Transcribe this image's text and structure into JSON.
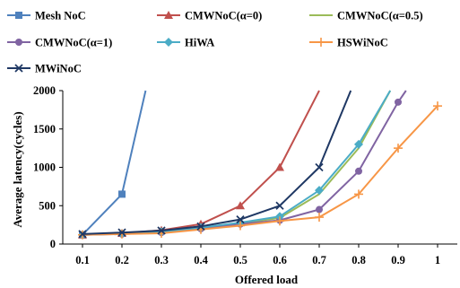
{
  "chart_data": {
    "type": "line",
    "title": "",
    "xlabel": "Offered load",
    "ylabel": "Average latency(cycles)",
    "x": [
      0.1,
      0.2,
      0.3,
      0.4,
      0.5,
      0.6,
      0.7,
      0.8,
      0.9,
      1
    ],
    "x_tick_labels": [
      "0.1",
      "0.2",
      "0.3",
      "0.4",
      "0.5",
      "0.6",
      "0.7",
      "0.8",
      "0.9",
      "1"
    ],
    "y_ticks": [
      0,
      500,
      1000,
      1500,
      2000
    ],
    "y_tick_labels": [
      "0",
      "500",
      "1000",
      "1500",
      "2000"
    ],
    "xlim": [
      0.05,
      1.05
    ],
    "ylim": [
      0,
      2000
    ],
    "grid": false,
    "legend_position": "top",
    "series": [
      {
        "name": "Mesh NoC",
        "color": "#4f81bd",
        "marker": "square",
        "points": [
          [
            0.1,
            120
          ],
          [
            0.2,
            650
          ],
          [
            0.26,
            2000
          ]
        ]
      },
      {
        "name": "CMWNoC(α=0)",
        "color": "#c0504d",
        "marker": "triangle",
        "points": [
          [
            0.1,
            120
          ],
          [
            0.2,
            140
          ],
          [
            0.3,
            180
          ],
          [
            0.4,
            260
          ],
          [
            0.5,
            500
          ],
          [
            0.6,
            1000
          ],
          [
            0.7,
            2000
          ]
        ]
      },
      {
        "name": "CMWNoC(α=0.5)",
        "color": "#9bbb59",
        "marker": "none",
        "points": [
          [
            0.1,
            120
          ],
          [
            0.2,
            135
          ],
          [
            0.3,
            155
          ],
          [
            0.4,
            210
          ],
          [
            0.5,
            270
          ],
          [
            0.6,
            340
          ],
          [
            0.7,
            650
          ],
          [
            0.8,
            1250
          ],
          [
            0.88,
            2000
          ]
        ]
      },
      {
        "name": "CMWNoC(α=1)",
        "color": "#8064a2",
        "marker": "circle",
        "points": [
          [
            0.1,
            120
          ],
          [
            0.2,
            130
          ],
          [
            0.3,
            150
          ],
          [
            0.4,
            200
          ],
          [
            0.5,
            260
          ],
          [
            0.6,
            310
          ],
          [
            0.7,
            450
          ],
          [
            0.8,
            950
          ],
          [
            0.9,
            1850
          ],
          [
            0.92,
            2000
          ]
        ]
      },
      {
        "name": "HiWA",
        "color": "#4bacc6",
        "marker": "diamond",
        "points": [
          [
            0.1,
            120
          ],
          [
            0.2,
            135
          ],
          [
            0.3,
            160
          ],
          [
            0.4,
            215
          ],
          [
            0.5,
            280
          ],
          [
            0.6,
            360
          ],
          [
            0.7,
            700
          ],
          [
            0.8,
            1300
          ],
          [
            0.88,
            2000
          ]
        ]
      },
      {
        "name": "HSWiNoC",
        "color": "#f79646",
        "marker": "plus",
        "points": [
          [
            0.1,
            120
          ],
          [
            0.2,
            130
          ],
          [
            0.3,
            140
          ],
          [
            0.4,
            190
          ],
          [
            0.5,
            240
          ],
          [
            0.6,
            300
          ],
          [
            0.7,
            350
          ],
          [
            0.8,
            650
          ],
          [
            0.9,
            1250
          ],
          [
            1.0,
            1800
          ]
        ]
      },
      {
        "name": "MWiNoC",
        "color": "#1f3864",
        "marker": "x",
        "points": [
          [
            0.1,
            130
          ],
          [
            0.2,
            150
          ],
          [
            0.3,
            175
          ],
          [
            0.4,
            230
          ],
          [
            0.5,
            320
          ],
          [
            0.6,
            500
          ],
          [
            0.7,
            1000
          ],
          [
            0.78,
            2000
          ]
        ]
      }
    ]
  }
}
